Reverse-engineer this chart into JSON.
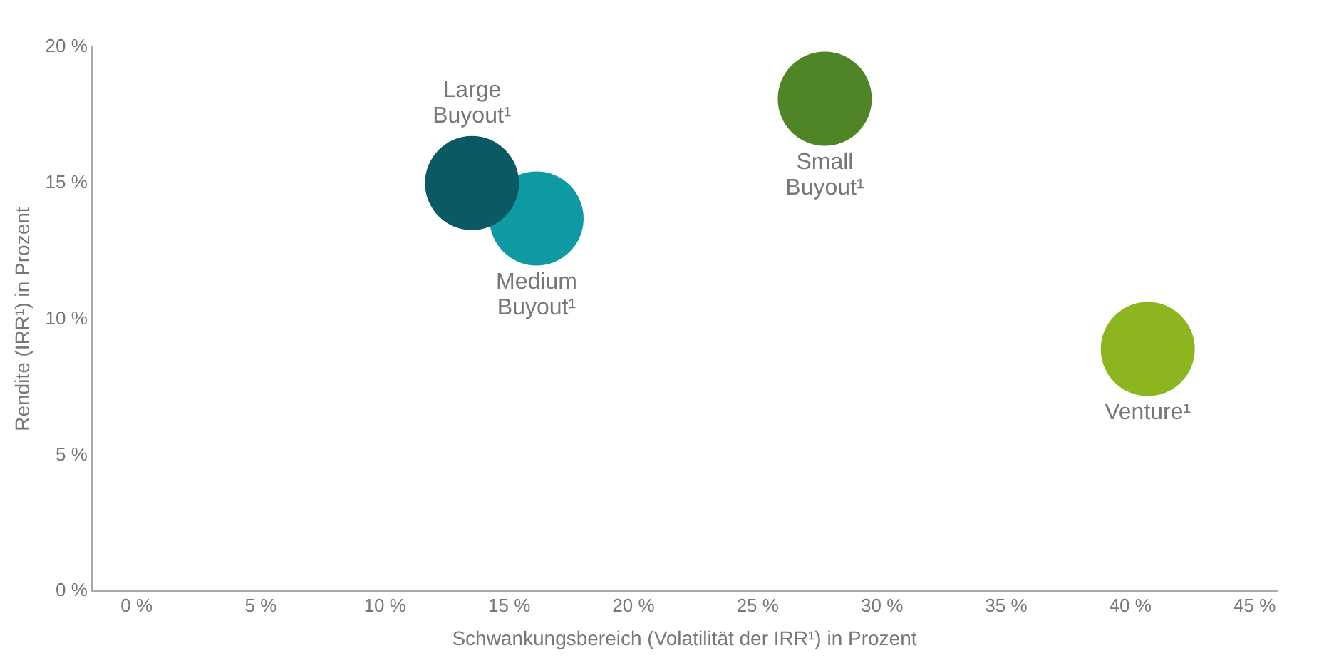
{
  "chart_data": {
    "type": "bubble",
    "xlabel": "Schwankungsbereich (Volatilität der IRR¹) in Prozent",
    "ylabel": "Rendite (IRR¹) in Prozent",
    "xlim": [
      -1.8,
      45.9
    ],
    "ylim": [
      0,
      20
    ],
    "xticks": [
      {
        "value": 0,
        "label": "0 %"
      },
      {
        "value": 5,
        "label": "5 %"
      },
      {
        "value": 10,
        "label": "10 %"
      },
      {
        "value": 15,
        "label": "15 %"
      },
      {
        "value": 20,
        "label": "20 %"
      },
      {
        "value": 25,
        "label": "25 %"
      },
      {
        "value": 30,
        "label": "30 %"
      },
      {
        "value": 35,
        "label": "35 %"
      },
      {
        "value": 40,
        "label": "40 %"
      },
      {
        "value": 45,
        "label": "45 %"
      }
    ],
    "yticks": [
      {
        "value": 0,
        "label": "0 %"
      },
      {
        "value": 5,
        "label": "5 %"
      },
      {
        "value": 10,
        "label": "10 %"
      },
      {
        "value": 15,
        "label": "15 %"
      },
      {
        "value": 20,
        "label": "20 %"
      }
    ],
    "grid": false,
    "legend": false,
    "series": [
      {
        "name": "Large Buyout¹",
        "color": "#0b5a63",
        "x": [
          13.5
        ],
        "values": [
          15
        ],
        "sizes": [
          1
        ]
      },
      {
        "name": "Medium Buyout¹",
        "color": "#0f9aa3",
        "x": [
          16.1
        ],
        "values": [
          13.7
        ],
        "sizes": [
          1
        ]
      },
      {
        "name": "Small Buyout¹",
        "color": "#4f8427",
        "x": [
          27.7
        ],
        "values": [
          18.1
        ],
        "sizes": [
          1
        ]
      },
      {
        "name": "Venture¹",
        "color": "#8db51f",
        "x": [
          40.7
        ],
        "values": [
          8.9
        ],
        "sizes": [
          1
        ]
      }
    ]
  }
}
